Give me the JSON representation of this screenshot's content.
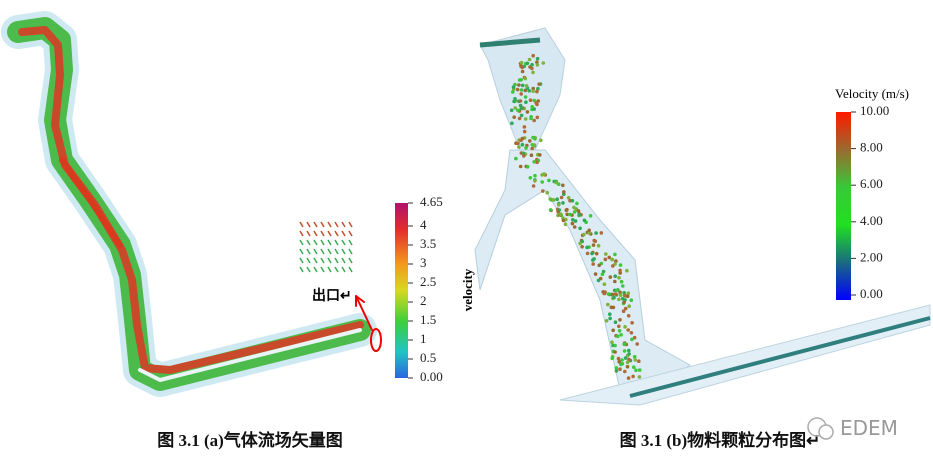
{
  "figures": [
    {
      "caption": "图 3.1 (a)气体流场矢量图",
      "annotation": "出口↵",
      "colorbar": {
        "title": "velocity",
        "ticks": [
          "4.65",
          "4",
          "3.5",
          "3",
          "2.5",
          "2",
          "1.5",
          "1",
          "0.5",
          "0.00"
        ]
      }
    },
    {
      "caption": "图 3.1 (b)物料颗粒分布图↵",
      "colorbar": {
        "title": "Velocity (m/s)",
        "ticks": [
          "10.00",
          "8.00",
          "6.00",
          "4.00",
          "2.00",
          "0.00"
        ]
      }
    }
  ],
  "watermark": "EDEM"
}
